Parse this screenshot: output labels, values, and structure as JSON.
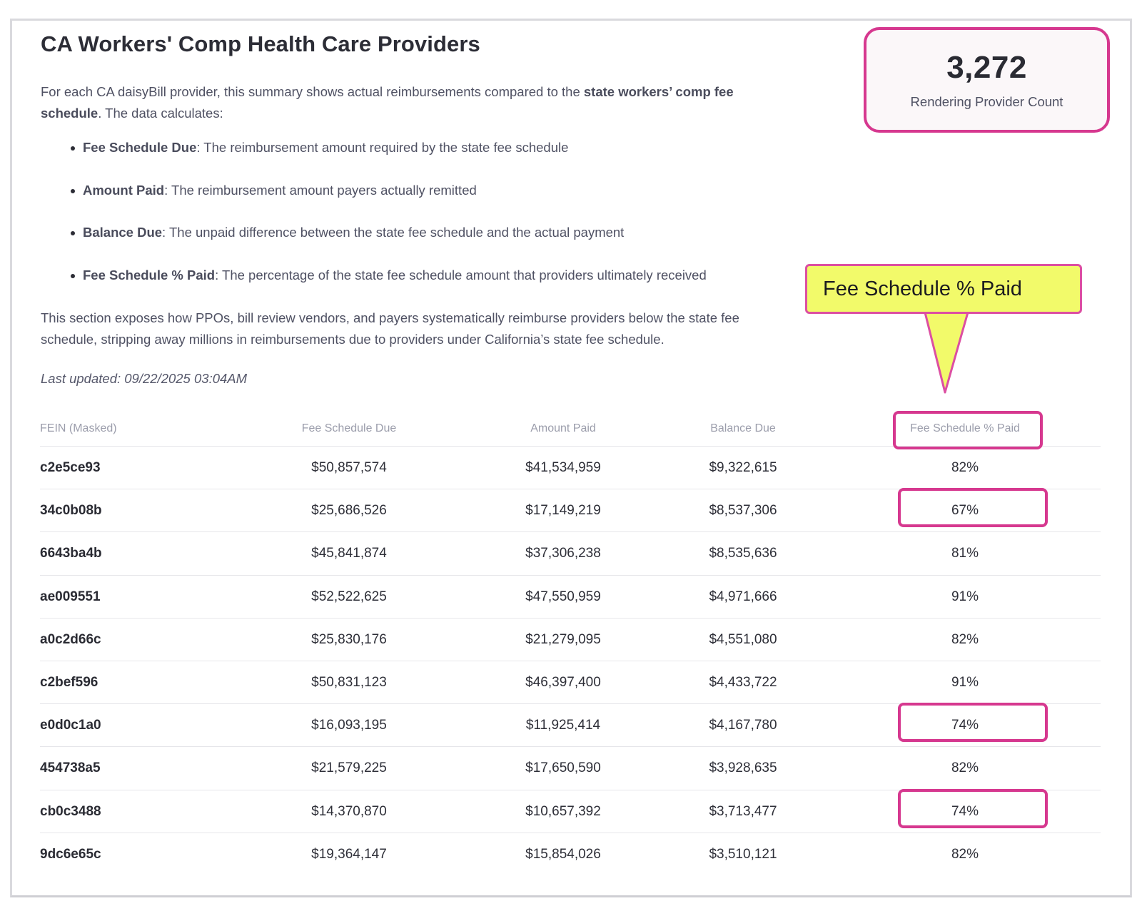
{
  "title": "CA Workers' Comp Health Care Providers",
  "intro": {
    "text_before": "For each CA daisyBill provider, this summary shows actual reimbursements compared to the ",
    "bold": "state workers’ comp fee schedule",
    "text_after": ". The data calculates:"
  },
  "bullets": [
    {
      "term": "Fee Schedule Due",
      "desc": ": The reimbursement amount required by the state fee schedule"
    },
    {
      "term": "Amount Paid",
      "desc": ": The reimbursement amount payers actually remitted"
    },
    {
      "term": "Balance Due",
      "desc": ": The unpaid difference between the state fee schedule and the actual payment"
    },
    {
      "term": "Fee Schedule % Paid",
      "desc": ": The percentage of the state fee schedule amount that providers ultimately received"
    }
  ],
  "outro": "This section exposes how PPOs, bill review vendors, and payers systematically reimburse providers below the state fee schedule, stripping away millions in reimbursements due to providers under California’s state fee schedule.",
  "last_updated": "Last updated: 09/22/2025 03:04AM",
  "provider_count": {
    "value": "3,272",
    "label": "Rendering Provider Count"
  },
  "callout": {
    "text": "Fee Schedule % Paid",
    "fill": "#f2fa6a",
    "border": "#dc4fa2"
  },
  "colors": {
    "highlight": "#d6388f"
  },
  "table": {
    "headers": [
      "FEIN (Masked)",
      "Fee Schedule Due",
      "Amount Paid",
      "Balance Due",
      "Fee Schedule % Paid"
    ],
    "rows": [
      {
        "fein": "c2e5ce93",
        "due": "$50,857,574",
        "paid": "$41,534,959",
        "balance": "$9,322,615",
        "pct": "82%",
        "highlighted": false
      },
      {
        "fein": "34c0b08b",
        "due": "$25,686,526",
        "paid": "$17,149,219",
        "balance": "$8,537,306",
        "pct": "67%",
        "highlighted": true
      },
      {
        "fein": "6643ba4b",
        "due": "$45,841,874",
        "paid": "$37,306,238",
        "balance": "$8,535,636",
        "pct": "81%",
        "highlighted": false
      },
      {
        "fein": "ae009551",
        "due": "$52,522,625",
        "paid": "$47,550,959",
        "balance": "$4,971,666",
        "pct": "91%",
        "highlighted": false
      },
      {
        "fein": "a0c2d66c",
        "due": "$25,830,176",
        "paid": "$21,279,095",
        "balance": "$4,551,080",
        "pct": "82%",
        "highlighted": false
      },
      {
        "fein": "c2bef596",
        "due": "$50,831,123",
        "paid": "$46,397,400",
        "balance": "$4,433,722",
        "pct": "91%",
        "highlighted": false
      },
      {
        "fein": "e0d0c1a0",
        "due": "$16,093,195",
        "paid": "$11,925,414",
        "balance": "$4,167,780",
        "pct": "74%",
        "highlighted": true
      },
      {
        "fein": "454738a5",
        "due": "$21,579,225",
        "paid": "$17,650,590",
        "balance": "$3,928,635",
        "pct": "82%",
        "highlighted": false
      },
      {
        "fein": "cb0c3488",
        "due": "$14,370,870",
        "paid": "$10,657,392",
        "balance": "$3,713,477",
        "pct": "74%",
        "highlighted": true
      },
      {
        "fein": "9dc6e65c",
        "due": "$19,364,147",
        "paid": "$15,854,026",
        "balance": "$3,510,121",
        "pct": "82%",
        "highlighted": false
      }
    ]
  }
}
